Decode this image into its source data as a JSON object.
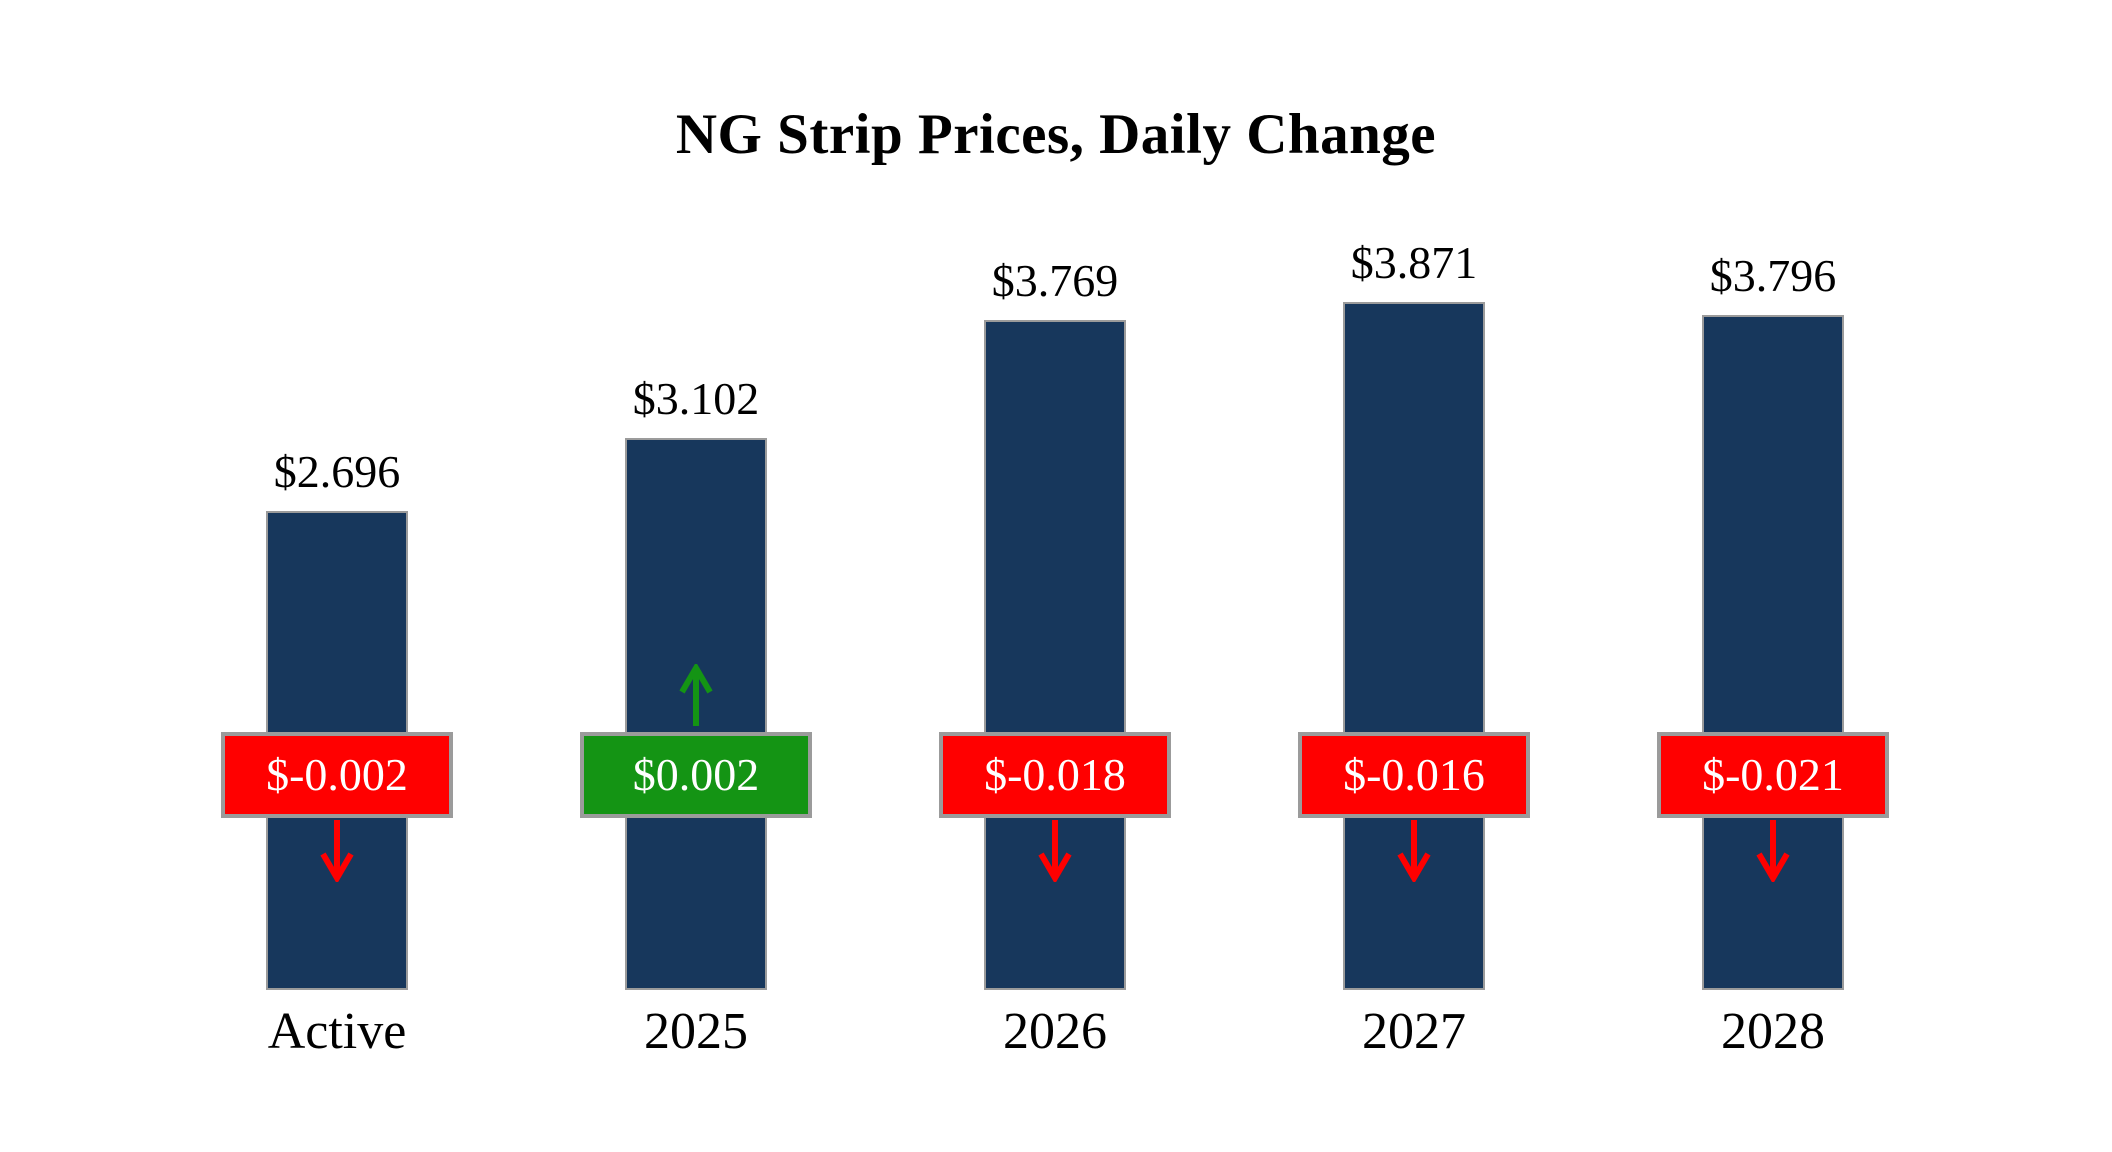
{
  "chart_data": {
    "type": "bar",
    "title": "NG Strip Prices, Daily Change",
    "categories": [
      "Active",
      "2025",
      "2026",
      "2027",
      "2028"
    ],
    "series": [
      {
        "name": "Strip Price",
        "values": [
          2.696,
          3.102,
          3.769,
          3.871,
          3.796
        ],
        "labels": [
          "$2.696",
          "$3.102",
          "$3.769",
          "$3.871",
          "$3.796"
        ]
      },
      {
        "name": "Daily Change",
        "values": [
          -0.002,
          0.002,
          -0.018,
          -0.016,
          -0.021
        ],
        "labels": [
          "$-0.002",
          "$0.002",
          "$-0.018",
          "$-0.016",
          "$-0.021"
        ]
      }
    ],
    "ylim": [
      0,
      4.2
    ],
    "grid": false,
    "legend": "none",
    "colors": {
      "bar": "#17375c",
      "bar_border": "#9b9b9b",
      "positive": "#149414",
      "negative": "#ff0000",
      "badge_border": "#9b9b9b",
      "badge_text": "#ffffff",
      "text": "#000000",
      "background": "#ffffff"
    }
  }
}
